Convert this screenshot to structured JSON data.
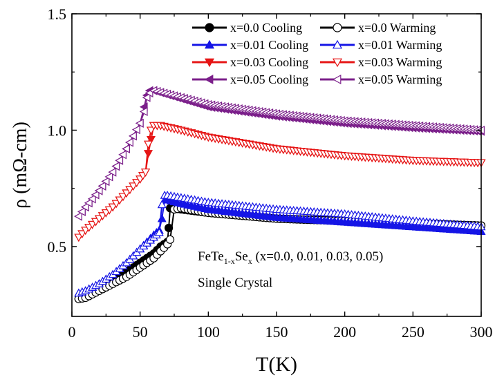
{
  "chart_data": {
    "type": "scatter",
    "title": "",
    "xlabel": "T(K)",
    "ylabel": "ρ (mΩ-cm)",
    "xlim": [
      0,
      300
    ],
    "ylim": [
      0.2,
      1.5
    ],
    "xticks": [
      0,
      50,
      100,
      150,
      200,
      250,
      300
    ],
    "yticks": [
      0.5,
      1.0,
      1.5
    ],
    "ytick_labels": [
      "0.5",
      "1.0",
      "1.5"
    ],
    "legend_position": "top-right",
    "annotation": {
      "formula_base": "FeTe",
      "formula_sub1": "1-x",
      "formula_mid": "Se",
      "formula_sub2": "x",
      "formula_tail": " (x=0.0, 0.01, 0.03, 0.05)",
      "line2": "Single Crystal"
    },
    "series": [
      {
        "name": "x=0.0 Cooling",
        "color": "#000000",
        "marker": "circle-filled",
        "x": [
          300,
          250,
          200,
          150,
          100,
          80,
          73,
          72,
          71,
          70,
          65,
          60,
          55,
          50,
          45,
          40,
          30,
          20,
          10,
          5
        ],
        "y": [
          0.59,
          0.6,
          0.61,
          0.62,
          0.645,
          0.66,
          0.665,
          0.665,
          0.58,
          0.52,
          0.5,
          0.47,
          0.45,
          0.43,
          0.41,
          0.39,
          0.36,
          0.32,
          0.29,
          0.275
        ]
      },
      {
        "name": "x=0.0 Warming",
        "color": "#000000",
        "marker": "circle-open",
        "x": [
          5,
          10,
          20,
          30,
          40,
          50,
          60,
          65,
          70,
          72,
          75,
          80,
          100,
          150,
          200,
          250,
          300
        ],
        "y": [
          0.275,
          0.28,
          0.31,
          0.34,
          0.37,
          0.41,
          0.45,
          0.48,
          0.51,
          0.53,
          0.66,
          0.665,
          0.645,
          0.62,
          0.61,
          0.6,
          0.59
        ]
      },
      {
        "name": "x=0.01 Cooling",
        "color": "#1515e6",
        "marker": "triangle-up-filled",
        "x": [
          300,
          250,
          200,
          150,
          100,
          80,
          70,
          68,
          66,
          64,
          60,
          55,
          50,
          40,
          30,
          20,
          10,
          5
        ],
        "y": [
          0.565,
          0.585,
          0.605,
          0.625,
          0.66,
          0.685,
          0.7,
          0.7,
          0.62,
          0.57,
          0.55,
          0.52,
          0.49,
          0.43,
          0.38,
          0.34,
          0.31,
          0.3
        ]
      },
      {
        "name": "x=0.01 Warming",
        "color": "#1515e6",
        "marker": "triangle-up-open",
        "x": [
          5,
          10,
          20,
          30,
          40,
          50,
          60,
          64,
          66,
          68,
          70,
          80,
          100,
          150,
          200,
          250,
          300
        ],
        "y": [
          0.3,
          0.31,
          0.34,
          0.38,
          0.43,
          0.49,
          0.54,
          0.56,
          0.68,
          0.72,
          0.72,
          0.71,
          0.69,
          0.66,
          0.64,
          0.61,
          0.585
        ]
      },
      {
        "name": "x=0.03 Cooling",
        "color": "#e61515",
        "marker": "triangle-down-filled",
        "x": [
          300,
          250,
          200,
          150,
          100,
          80,
          65,
          60,
          58,
          56,
          54,
          50,
          40,
          30,
          20,
          10,
          5
        ],
        "y": [
          0.86,
          0.87,
          0.89,
          0.92,
          0.97,
          1.0,
          1.02,
          1.02,
          0.96,
          0.9,
          0.82,
          0.79,
          0.73,
          0.67,
          0.62,
          0.57,
          0.54
        ]
      },
      {
        "name": "x=0.03 Warming",
        "color": "#e61515",
        "marker": "triangle-down-open",
        "x": [
          5,
          10,
          20,
          30,
          40,
          50,
          54,
          56,
          58,
          60,
          65,
          80,
          100,
          150,
          200,
          250,
          300
        ],
        "y": [
          0.54,
          0.57,
          0.62,
          0.67,
          0.73,
          0.79,
          0.82,
          0.94,
          1.0,
          1.02,
          1.02,
          1.0,
          0.97,
          0.92,
          0.89,
          0.87,
          0.86
        ]
      },
      {
        "name": "x=0.05 Cooling",
        "color": "#7b1f8a",
        "marker": "triangle-left-filled",
        "x": [
          300,
          250,
          200,
          150,
          100,
          80,
          60,
          57,
          55,
          53,
          50,
          40,
          30,
          20,
          10,
          5
        ],
        "y": [
          0.995,
          1.01,
          1.03,
          1.06,
          1.1,
          1.135,
          1.17,
          1.17,
          1.15,
          1.1,
          1.03,
          0.92,
          0.82,
          0.74,
          0.67,
          0.63
        ]
      },
      {
        "name": "x=0.05 Warming",
        "color": "#7b1f8a",
        "marker": "triangle-left-open",
        "x": [
          5,
          10,
          20,
          30,
          40,
          50,
          53,
          55,
          57,
          60,
          80,
          100,
          150,
          200,
          250,
          300
        ],
        "y": [
          0.63,
          0.67,
          0.74,
          0.82,
          0.92,
          1.03,
          1.08,
          1.14,
          1.16,
          1.17,
          1.14,
          1.11,
          1.07,
          1.04,
          1.02,
          1.0
        ]
      }
    ]
  }
}
